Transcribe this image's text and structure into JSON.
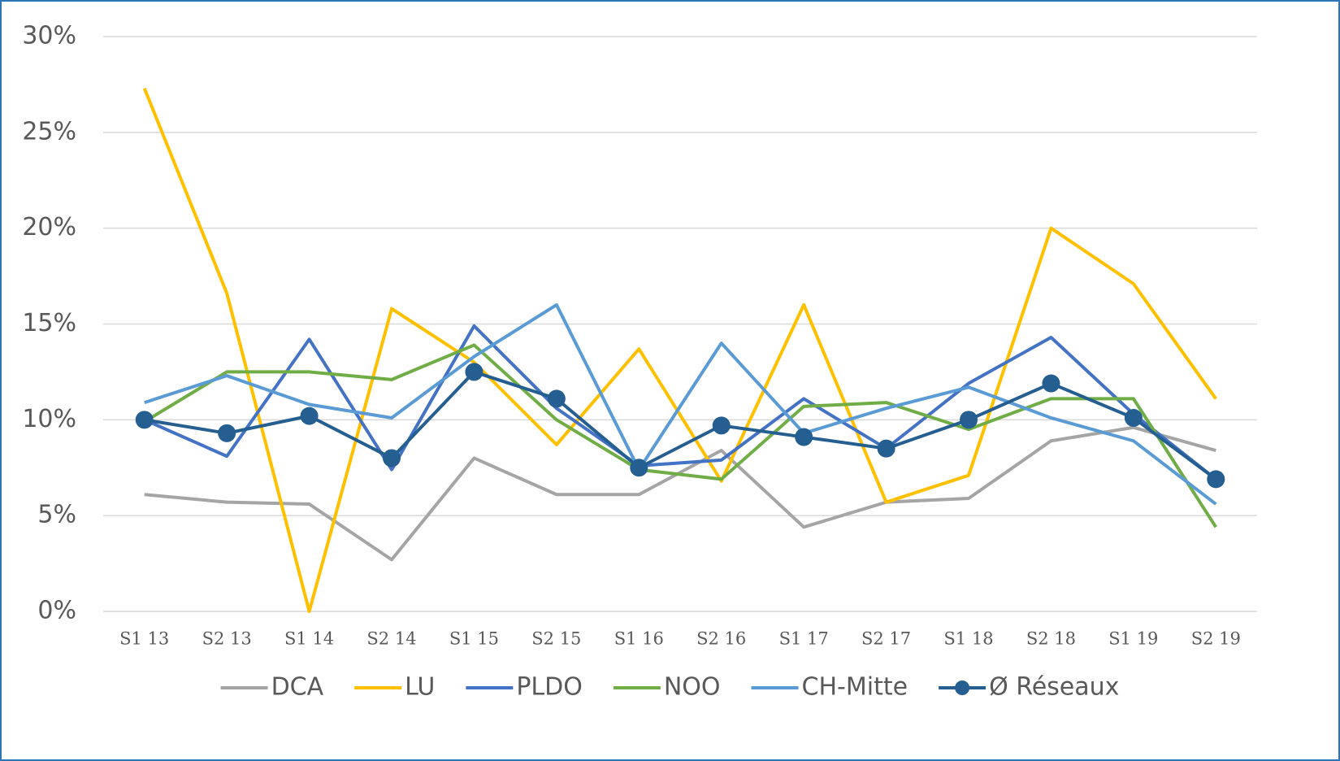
{
  "chart_data": {
    "type": "line",
    "categories": [
      "S1 13",
      "S2 13",
      "S1 14",
      "S2 14",
      "S1 15",
      "S2 15",
      "S1 16",
      "S2 16",
      "S1 17",
      "S2 17",
      "S1 18",
      "S2 18",
      "S1 19",
      "S2 19"
    ],
    "series": [
      {
        "name": "DCA",
        "color": "#a5a5a5",
        "values": [
          6.1,
          5.7,
          5.6,
          2.7,
          8.0,
          6.1,
          6.1,
          8.4,
          4.4,
          5.7,
          5.9,
          8.9,
          9.6,
          8.4
        ]
      },
      {
        "name": "LU",
        "color": "#ffc000",
        "values": [
          27.3,
          16.6,
          0,
          15.8,
          13.0,
          8.7,
          13.7,
          6.8,
          16.0,
          5.7,
          7.1,
          20.0,
          17.1,
          11.1
        ]
      },
      {
        "name": "PLDO",
        "color": "#4472c4",
        "values": [
          10.0,
          8.1,
          14.2,
          7.4,
          14.9,
          10.6,
          7.6,
          7.9,
          11.1,
          8.5,
          11.9,
          14.3,
          10.3,
          6.9
        ]
      },
      {
        "name": "NOO",
        "color": "#70ad47",
        "values": [
          9.9,
          12.5,
          12.5,
          12.1,
          13.9,
          10.0,
          7.4,
          6.9,
          10.7,
          10.9,
          9.5,
          11.1,
          11.1,
          4.4
        ]
      },
      {
        "name": "CH-Mitte",
        "color": "#5b9bd5",
        "values": [
          10.9,
          12.3,
          10.8,
          10.1,
          13.3,
          16.0,
          7.4,
          14.0,
          9.3,
          10.6,
          11.7,
          10.1,
          8.9,
          5.6
        ]
      },
      {
        "name": "Ø Réseaux",
        "color": "#255e91",
        "markers": true,
        "values": [
          10.0,
          9.3,
          10.2,
          8.0,
          12.5,
          11.1,
          7.5,
          9.7,
          9.1,
          8.5,
          10.0,
          11.9,
          10.1,
          6.9
        ]
      }
    ],
    "ylim": [
      0,
      30
    ],
    "yticks": [
      {
        "value": 0,
        "label": "0%"
      },
      {
        "value": 5,
        "label": "5%"
      },
      {
        "value": 10,
        "label": "10%"
      },
      {
        "value": 15,
        "label": "15%"
      },
      {
        "value": 20,
        "label": "20%"
      },
      {
        "value": 25,
        "label": "25%"
      },
      {
        "value": 30,
        "label": "30%"
      }
    ],
    "grid": true,
    "legend": "bottom"
  }
}
